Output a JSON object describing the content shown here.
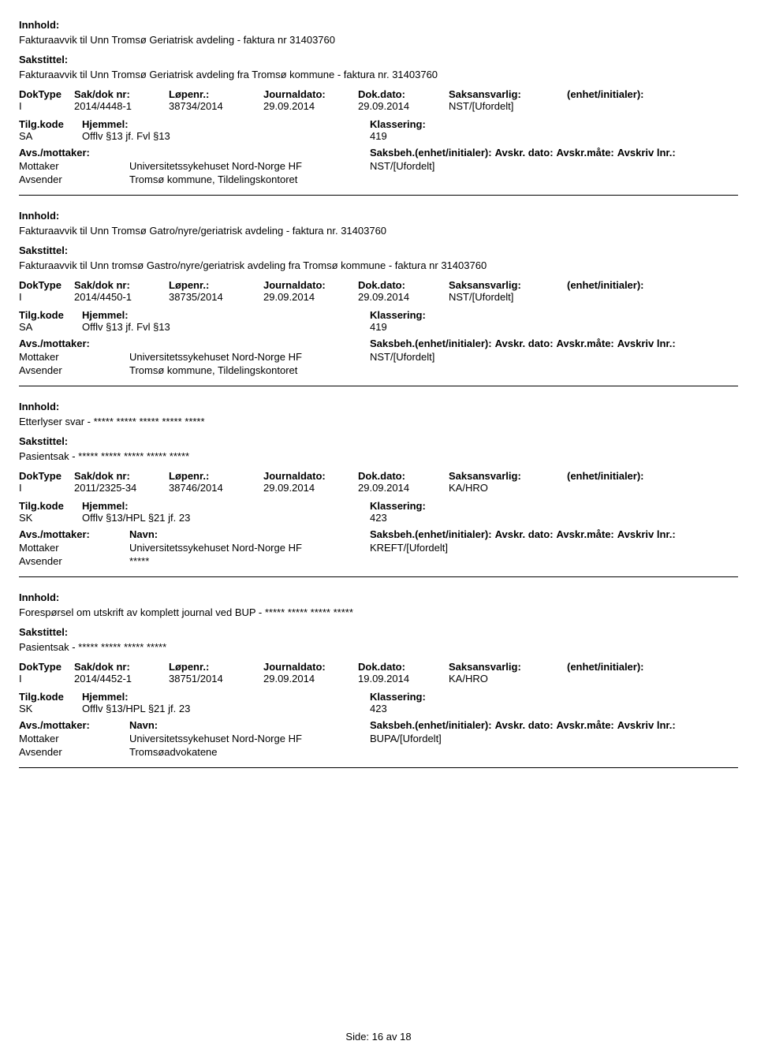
{
  "labels": {
    "innhold": "Innhold:",
    "sakstittel": "Sakstittel:",
    "doktype": "DokType",
    "sakdok": "Sak/dok nr:",
    "lopenr": "Løpenr.:",
    "journaldato": "Journaldato:",
    "dokdato": "Dok.dato:",
    "saksansvarlig": "Saksansvarlig:",
    "enhet_init": "(enhet/initialer):",
    "tilgkode": "Tilg.kode",
    "hjemmel": "Hjemmel:",
    "klassering": "Klassering:",
    "avs_mottaker": "Avs./mottaker:",
    "navn": "Navn:",
    "saksbeh": "Saksbeh.(enhet/initialer):",
    "avskr_dato": "Avskr. dato:",
    "avskr_mate": "Avskr.måte:",
    "avskriv_lnr": "Avskriv lnr.:",
    "mottaker": "Mottaker",
    "avsender": "Avsender",
    "side": "Side:",
    "av": "av"
  },
  "footer": {
    "page": "16",
    "total": "18"
  },
  "records": [
    {
      "innhold": "Fakturaavvik til Unn Tromsø Geriatrisk avdeling - faktura nr 31403760",
      "sakstittel": "Fakturaavvik til Unn Tromsø Geriatrisk avdeling fra Tromsø kommune - faktura nr. 31403760",
      "doktype": "I",
      "sakdok": "2014/4448-1",
      "lopenr": "38734/2014",
      "journaldato": "29.09.2014",
      "dokdato": "29.09.2014",
      "saksansvarlig": "NST/[Ufordelt]",
      "tilgkode": "SA",
      "hjemmel": "Offlv §13 jf. Fvl §13",
      "klassering": "419",
      "show_navn_header": false,
      "mottaker_name": "Universitetssykehuset Nord-Norge HF",
      "mottaker_unit": "NST/[Ufordelt]",
      "avsender_name": "Tromsø kommune, Tildelingskontoret"
    },
    {
      "innhold": "Fakturaavvik til Unn Tromsø Gatro/nyre/geriatrisk avdeling - faktura nr. 31403760",
      "sakstittel": "Fakturaavvik til Unn tromsø Gastro/nyre/geriatrisk avdeling fra Tromsø kommune - faktura nr 31403760",
      "doktype": "I",
      "sakdok": "2014/4450-1",
      "lopenr": "38735/2014",
      "journaldato": "29.09.2014",
      "dokdato": "29.09.2014",
      "saksansvarlig": "NST/[Ufordelt]",
      "tilgkode": "SA",
      "hjemmel": "Offlv §13 jf. Fvl §13",
      "klassering": "419",
      "show_navn_header": false,
      "mottaker_name": "Universitetssykehuset Nord-Norge HF",
      "mottaker_unit": "NST/[Ufordelt]",
      "avsender_name": "Tromsø kommune, Tildelingskontoret"
    },
    {
      "innhold": "Etterlyser svar - ***** ***** ***** ***** *****",
      "sakstittel": "Pasientsak - ***** ***** ***** ***** *****",
      "doktype": "I",
      "sakdok": "2011/2325-34",
      "lopenr": "38746/2014",
      "journaldato": "29.09.2014",
      "dokdato": "29.09.2014",
      "saksansvarlig": "KA/HRO",
      "tilgkode": "SK",
      "hjemmel": "Offlv §13/HPL §21 jf. 23",
      "klassering": "423",
      "show_navn_header": true,
      "mottaker_name": "Universitetssykehuset Nord-Norge HF",
      "mottaker_unit": "KREFT/[Ufordelt]",
      "avsender_name": "*****"
    },
    {
      "innhold": "Forespørsel om utskrift av komplett journal ved BUP - ***** ***** ***** *****",
      "sakstittel": "Pasientsak - ***** ***** ***** *****",
      "doktype": "I",
      "sakdok": "2014/4452-1",
      "lopenr": "38751/2014",
      "journaldato": "29.09.2014",
      "dokdato": "19.09.2014",
      "saksansvarlig": "KA/HRO",
      "tilgkode": "SK",
      "hjemmel": "Offlv §13/HPL §21 jf. 23",
      "klassering": "423",
      "show_navn_header": true,
      "mottaker_name": "Universitetssykehuset Nord-Norge HF",
      "mottaker_unit": "BUPA/[Ufordelt]",
      "avsender_name": "Tromsøadvokatene"
    }
  ]
}
